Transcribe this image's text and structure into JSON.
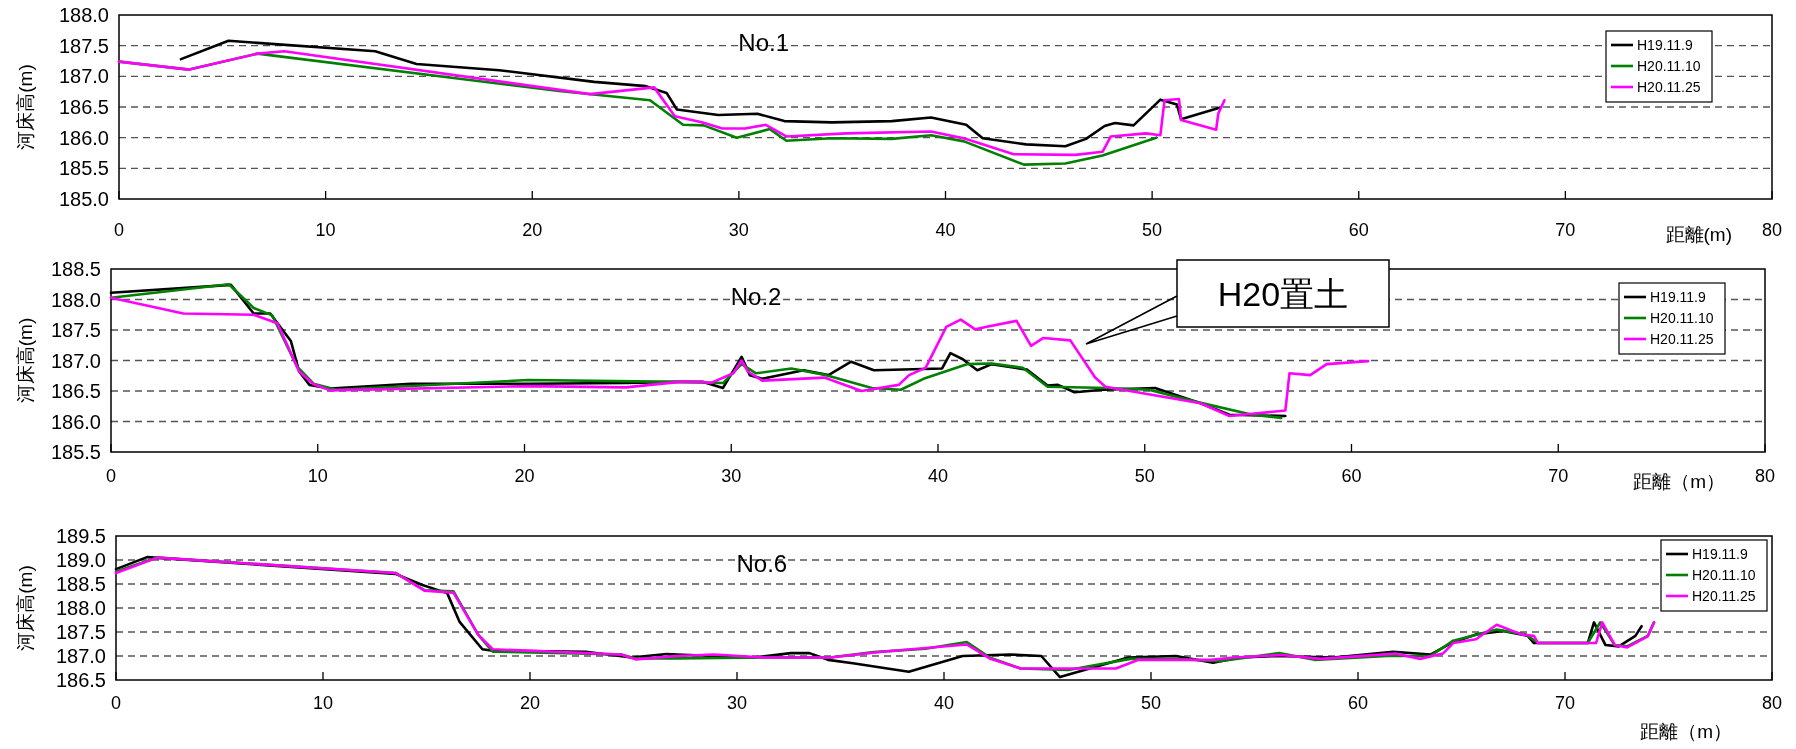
{
  "chart_data": [
    {
      "type": "line",
      "title": "No.1",
      "xlabel": "距離(m)",
      "ylabel": "河床高(m)",
      "xlim": [
        0,
        80
      ],
      "xticks": [
        0,
        10,
        20,
        30,
        40,
        50,
        60,
        70,
        80
      ],
      "ylim": [
        185,
        188
      ],
      "yticks": [
        {
          "value": 185,
          "label": "185.0"
        },
        185.5,
        {
          "value": 186,
          "label": "186.0"
        },
        186.5,
        {
          "value": 187,
          "label": "187.0"
        },
        187.5,
        {
          "value": 188,
          "label": "188.0"
        }
      ],
      "grid": "y",
      "legend": "top right",
      "series": [
        {
          "name": "H19.11.9",
          "color": "#000000",
          "x": [
            3.0,
            5.3,
            12.4,
            14.4,
            18.4,
            23.0,
            25.5,
            26.5,
            27.0,
            29.0,
            30.9,
            32.2,
            34.5,
            37.4,
            39.3,
            41.0,
            41.8,
            43.9,
            45.8,
            46.8,
            47.7,
            48.2,
            49.1,
            50.4,
            51.2,
            51.4,
            53.3
          ],
          "values": [
            187.28,
            187.58,
            187.41,
            187.2,
            187.1,
            186.91,
            186.84,
            186.73,
            186.46,
            186.37,
            186.39,
            186.27,
            186.25,
            186.27,
            186.33,
            186.21,
            185.99,
            185.89,
            185.86,
            185.98,
            186.19,
            186.24,
            186.2,
            186.62,
            186.54,
            186.3,
            186.49
          ]
        },
        {
          "name": "H20.11.10",
          "color": "#008000",
          "x": [
            0,
            3.4,
            6.7,
            21.3,
            25.7,
            27.3,
            28.3,
            29.9,
            31.5,
            32.3,
            34.5,
            37.4,
            39.3,
            40.9,
            43.8,
            45.8,
            47.6,
            50.2
          ],
          "values": [
            187.24,
            187.11,
            187.37,
            186.76,
            186.61,
            186.21,
            186.2,
            186.0,
            186.14,
            185.95,
            185.99,
            185.98,
            186.04,
            185.94,
            185.56,
            185.58,
            185.71,
            186.0
          ]
        },
        {
          "name": "H20.11.25",
          "color": "#ff00ff",
          "x": [
            0,
            3.4,
            6.7,
            8.0,
            22.8,
            25.9,
            26.9,
            28.2,
            29.2,
            30.3,
            31.3,
            32.3,
            35.2,
            39.3,
            41.0,
            43.3,
            46.3,
            47.6,
            48.0,
            49.7,
            50.4,
            50.6,
            51.3,
            51.4,
            53.1,
            53.2,
            53.5
          ],
          "values": [
            187.24,
            187.11,
            187.37,
            187.41,
            186.71,
            186.82,
            186.35,
            186.25,
            186.15,
            186.15,
            186.21,
            186.02,
            186.07,
            186.1,
            185.98,
            185.73,
            185.72,
            185.77,
            186.02,
            186.07,
            186.04,
            186.61,
            186.63,
            186.29,
            186.13,
            186.39,
            186.61
          ]
        }
      ]
    },
    {
      "type": "line",
      "title": "No.2",
      "xlabel": "距離（m）",
      "ylabel": "河床高(m)",
      "xlim": [
        0,
        80
      ],
      "xticks": [
        0,
        10,
        20,
        30,
        40,
        50,
        60,
        70,
        80
      ],
      "ylim": [
        185.5,
        188.5
      ],
      "yticks": [
        185.5,
        {
          "value": 186,
          "label": "186.0"
        },
        186.5,
        {
          "value": 187,
          "label": "187.0"
        },
        187.5,
        {
          "value": 188,
          "label": "188.0"
        },
        188.5
      ],
      "grid": "y",
      "legend": "top right",
      "annotations": [
        "H20置土"
      ],
      "series": [
        {
          "name": "H19.11.9",
          "color": "#000000",
          "x": [
            0,
            5.8,
            6.9,
            7.7,
            8.7,
            9.1,
            9.6,
            10.6,
            14.5,
            20.2,
            24.9,
            27.5,
            28.6,
            29.6,
            30.5,
            30.9,
            31.5,
            33.5,
            34.7,
            35.8,
            36.9,
            40.2,
            40.6,
            41.2,
            41.9,
            42.6,
            44.3,
            45.3,
            45.8,
            46.6,
            48.0,
            50.5,
            52.7,
            54.1,
            56.8
          ],
          "values": [
            188.11,
            188.24,
            187.77,
            187.77,
            187.32,
            186.82,
            186.6,
            186.54,
            186.62,
            186.62,
            186.63,
            186.65,
            186.65,
            186.55,
            187.06,
            186.76,
            186.7,
            186.84,
            186.76,
            186.98,
            186.84,
            186.87,
            187.12,
            187.02,
            186.84,
            186.94,
            186.85,
            186.59,
            186.6,
            186.48,
            186.52,
            186.55,
            186.3,
            186.11,
            186.09
          ]
        },
        {
          "name": "H20.11.10",
          "color": "#008000",
          "x": [
            0,
            5.7,
            6.9,
            7.8,
            9.0,
            9.8,
            10.9,
            20.2,
            27.5,
            29.6,
            30.5,
            31.2,
            32.9,
            34.6,
            36.8,
            38.2,
            39.3,
            41.4,
            42.6,
            44.1,
            45.3,
            48.2,
            50.2,
            52.4,
            55.2,
            56.6
          ],
          "values": [
            188.03,
            188.25,
            187.86,
            187.74,
            186.9,
            186.62,
            186.52,
            186.68,
            186.65,
            186.63,
            186.94,
            186.79,
            186.87,
            186.76,
            186.55,
            186.52,
            186.7,
            186.94,
            186.95,
            186.88,
            186.57,
            186.55,
            186.52,
            186.33,
            186.11,
            186.06
          ]
        },
        {
          "name": "H20.11.25",
          "color": "#ff00ff",
          "x": [
            0,
            3.5,
            6.9,
            8.05,
            9.1,
            9.8,
            10.6,
            20.2,
            24.9,
            27.5,
            28.6,
            29.0,
            30.1,
            30.5,
            30.8,
            31.5,
            34.5,
            36.3,
            38.1,
            38.6,
            39.4,
            40.4,
            41.1,
            41.8,
            42.3,
            43.8,
            44.5,
            45.1,
            46.4,
            47.6,
            48.1,
            52.7,
            54.1,
            56.8,
            57.0,
            58.0,
            58.8,
            60.8
          ],
          "values": [
            188.03,
            187.77,
            187.75,
            187.61,
            186.82,
            186.61,
            186.51,
            186.58,
            186.56,
            186.65,
            186.65,
            186.63,
            186.79,
            187.0,
            186.82,
            186.67,
            186.72,
            186.5,
            186.6,
            186.76,
            186.88,
            187.55,
            187.67,
            187.51,
            187.55,
            187.65,
            187.24,
            187.37,
            187.33,
            186.72,
            186.57,
            186.3,
            186.09,
            186.18,
            186.79,
            186.76,
            186.94,
            186.99
          ]
        }
      ]
    },
    {
      "type": "line",
      "title": "No.6",
      "xlabel": "距離（m）",
      "ylabel": "河床高(m)",
      "xlim": [
        0,
        80
      ],
      "xticks": [
        0,
        10,
        20,
        30,
        40,
        50,
        60,
        70,
        80
      ],
      "ylim": [
        186.5,
        189.5
      ],
      "yticks": [
        186.5,
        {
          "value": 187,
          "label": "187.0"
        },
        187.5,
        {
          "value": 188,
          "label": "188.0"
        },
        188.5,
        {
          "value": 189,
          "label": "189.0"
        },
        189.5
      ],
      "grid": "y",
      "legend": "top right",
      "series": [
        {
          "name": "H19.11.9",
          "color": "#000000",
          "x": [
            0,
            1.5,
            13.5,
            14.8,
            16.0,
            16.6,
            17.7,
            18.2,
            22.7,
            24.9,
            26.6,
            27.1,
            30.8,
            32.6,
            33.5,
            34.4,
            35.6,
            38.3,
            40.9,
            43.2,
            44.7,
            45.6,
            48.9,
            51.2,
            53.0,
            54.3,
            56.1,
            58.8,
            61.7,
            63.5,
            64.5,
            65.7,
            67.0,
            68.2,
            68.5,
            71.1,
            71.4,
            71.95,
            72.6,
            73.4,
            73.7
          ],
          "values": [
            188.81,
            189.06,
            188.71,
            188.48,
            188.31,
            187.71,
            187.14,
            187.11,
            187.09,
            186.97,
            187.04,
            187.03,
            186.97,
            187.06,
            187.06,
            186.92,
            186.85,
            186.67,
            187.0,
            187.03,
            187.0,
            186.56,
            186.97,
            187.0,
            186.86,
            186.97,
            187.0,
            186.97,
            187.09,
            187.03,
            187.27,
            187.45,
            187.52,
            187.42,
            187.27,
            187.27,
            187.7,
            187.23,
            187.2,
            187.42,
            187.62
          ]
        },
        {
          "name": "H20.11.10",
          "color": "#008000",
          "x": [
            0,
            2.0,
            13.5,
            14.9,
            16.3,
            17.5,
            18.2,
            24.4,
            25.1,
            27.1,
            31.3,
            34.5,
            36.6,
            39.1,
            41.1,
            42.2,
            43.7,
            46.0,
            49.0,
            51.2,
            53.3,
            56.2,
            57.9,
            61.4,
            63.5,
            64.6,
            66.7,
            68.1,
            68.7,
            71.1,
            71.7,
            72.4,
            73.0,
            74.0,
            74.3
          ],
          "values": [
            188.76,
            189.05,
            188.73,
            188.37,
            188.35,
            187.44,
            187.09,
            187.03,
            186.95,
            186.95,
            186.97,
            186.97,
            187.08,
            187.15,
            187.29,
            186.97,
            186.74,
            186.71,
            186.94,
            186.94,
            186.89,
            187.06,
            186.92,
            187.0,
            187.0,
            187.32,
            187.55,
            187.45,
            187.27,
            187.27,
            187.7,
            187.23,
            187.2,
            187.42,
            187.7
          ]
        },
        {
          "name": "H20.11.25",
          "color": "#ff00ff",
          "x": [
            0,
            2.0,
            13.5,
            14.9,
            16.3,
            17.5,
            18.2,
            24.4,
            25.1,
            27.1,
            28.9,
            31.3,
            34.5,
            37.0,
            41.1,
            42.2,
            43.7,
            48.3,
            49.4,
            52.9,
            54.0,
            56.3,
            58.2,
            61.8,
            63.0,
            64.1,
            64.6,
            65.7,
            66.7,
            67.9,
            68.5,
            68.7,
            71.5,
            71.8,
            72.4,
            73.0,
            74.0,
            74.3
          ],
          "values": [
            188.73,
            189.05,
            188.73,
            188.36,
            188.32,
            187.44,
            187.14,
            187.03,
            186.93,
            187.0,
            187.03,
            186.97,
            186.97,
            187.09,
            187.24,
            186.95,
            186.74,
            186.74,
            186.92,
            186.92,
            186.97,
            187.02,
            186.94,
            187.05,
            186.94,
            187.05,
            187.27,
            187.35,
            187.65,
            187.45,
            187.42,
            187.27,
            187.27,
            187.7,
            187.23,
            187.18,
            187.41,
            187.7
          ]
        }
      ]
    }
  ]
}
